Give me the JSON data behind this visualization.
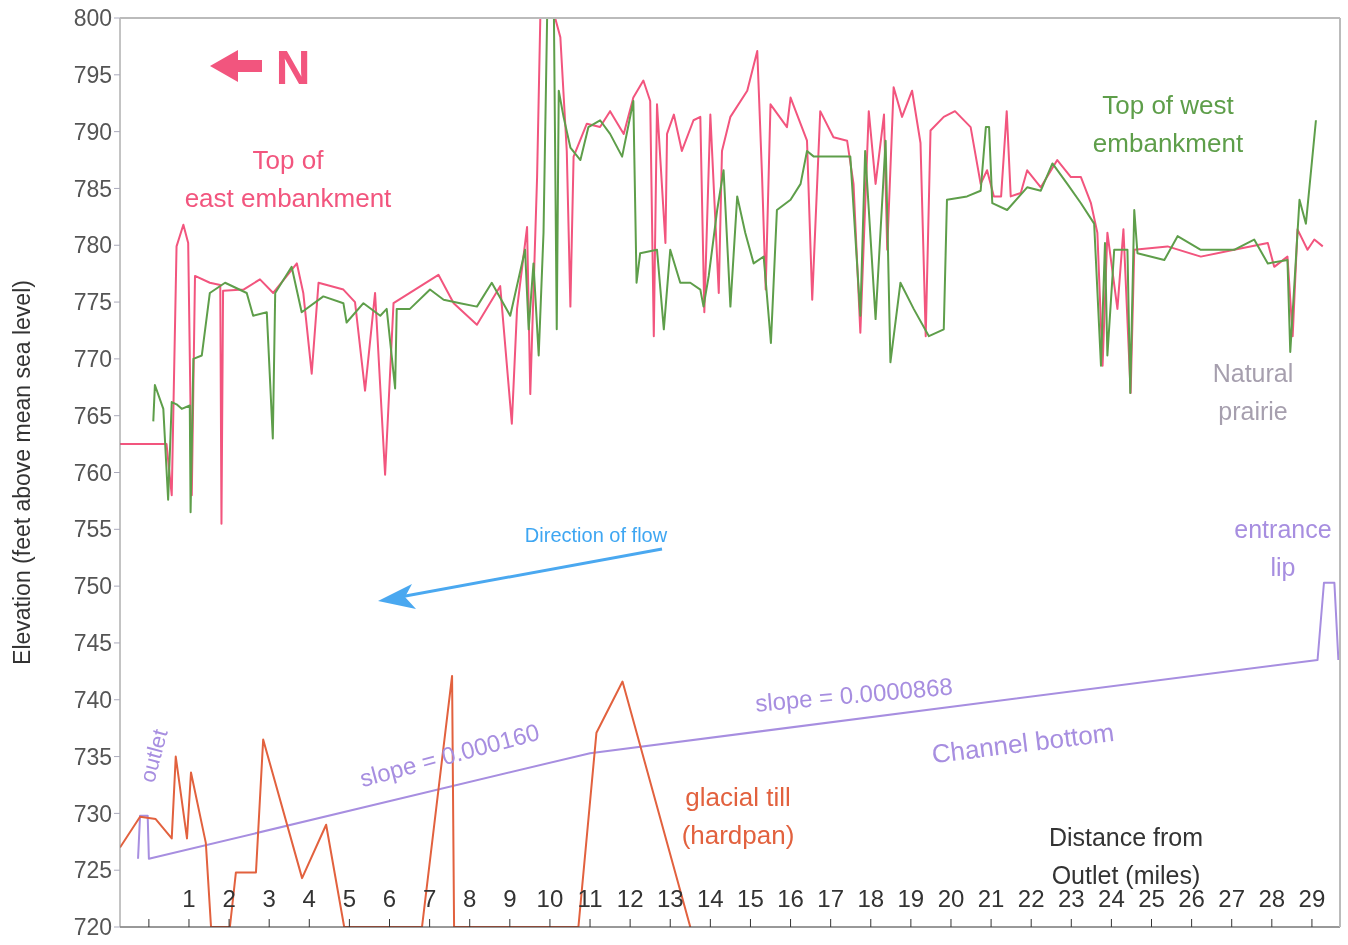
{
  "chart_data": {
    "type": "line",
    "xlabel": "Distance from Outlet (miles)",
    "ylabel": "Elevation (feet above mean sea level)",
    "xlim": [
      -0.72,
      29.7
    ],
    "ylim": [
      720,
      800
    ],
    "xticks": [
      {
        "value": 0,
        "label": null
      },
      1,
      2,
      3,
      4,
      5,
      6,
      7,
      8,
      9,
      10,
      11,
      12,
      13,
      14,
      15,
      16,
      17,
      18,
      19,
      20,
      21,
      22,
      23,
      24,
      25,
      26,
      27,
      28,
      29
    ],
    "yticks": [
      720,
      725,
      730,
      735,
      740,
      745,
      750,
      755,
      760,
      765,
      770,
      775,
      780,
      785,
      790,
      795,
      800
    ],
    "marker": "none",
    "series": [
      {
        "name": "Top of east embankment",
        "color": "#f2557e",
        "x": [
          -0.72,
          0.44,
          0.57,
          0.69,
          0.86,
          0.98,
          1.07,
          1.15,
          1.52,
          1.78,
          1.81,
          1.85,
          2.36,
          2.77,
          3.1,
          3.69,
          3.85,
          4.06,
          4.23,
          4.85,
          5.14,
          5.39,
          5.64,
          5.89,
          6.1,
          7.22,
          7.6,
          8.18,
          8.76,
          9.05,
          9.18,
          9.43,
          9.51,
          9.68,
          9.76,
          10.13,
          10.26,
          10.42,
          10.51,
          10.59,
          10.92,
          11.25,
          11.5,
          11.84,
          12.08,
          12.33,
          12.5,
          12.59,
          12.67,
          12.88,
          12.92,
          13.09,
          13.29,
          13.58,
          13.75,
          13.85,
          14.0,
          14.21,
          14.29,
          14.5,
          14.92,
          15.17,
          15.29,
          15.38,
          15.5,
          15.91,
          16.0,
          16.41,
          16.54,
          16.74,
          17.07,
          17.41,
          17.57,
          17.74,
          17.95,
          18.12,
          18.33,
          18.41,
          18.57,
          18.78,
          19.03,
          19.24,
          19.37,
          19.49,
          19.82,
          20.1,
          20.49,
          20.74,
          20.9,
          21.07,
          21.25,
          21.39,
          21.49,
          21.74,
          21.9,
          22.24,
          22.65,
          22.99,
          23.24,
          23.49,
          23.65,
          23.78,
          23.9,
          24.15,
          24.3,
          24.48,
          24.57,
          25.4,
          26.23,
          27.06,
          27.9,
          28.06,
          28.39,
          28.52,
          28.64,
          28.89,
          29.06,
          29.27
        ],
        "values": [
          762.5,
          762.5,
          758,
          779.9,
          781.8,
          780.2,
          758,
          777.3,
          776.7,
          776.5,
          755.5,
          776,
          776.1,
          777,
          775.8,
          778.4,
          775.8,
          768.7,
          776.7,
          776.1,
          775,
          767.2,
          775.8,
          759.8,
          774.9,
          777.4,
          774.9,
          773,
          776.4,
          764.3,
          774.4,
          781.6,
          766.9,
          786,
          800,
          800,
          798.3,
          788.3,
          774.6,
          787.8,
          790.7,
          790.4,
          791.8,
          789.8,
          793,
          794.5,
          792.7,
          772,
          792.4,
          780.2,
          789.8,
          791.5,
          788.3,
          791,
          791.3,
          774.1,
          791.5,
          775.8,
          788.3,
          791.3,
          793.6,
          797.1,
          786,
          776.1,
          792.4,
          790.4,
          793,
          789.2,
          775.2,
          791.8,
          789.5,
          789.2,
          785.4,
          772.3,
          791.8,
          785.4,
          791.5,
          779.6,
          793.9,
          791.3,
          793.6,
          789,
          772,
          790.1,
          791.3,
          791.8,
          790.4,
          785.4,
          786.6,
          784.3,
          784.3,
          791.8,
          784.3,
          784.6,
          786.6,
          785.1,
          787.5,
          786,
          786,
          783.7,
          781.1,
          769.4,
          781.1,
          774.4,
          781.4,
          767,
          779.6,
          779.9,
          779,
          779.6,
          780.2,
          778.1,
          779,
          772,
          781.4,
          779.6,
          780.5,
          779.9
        ]
      },
      {
        "name": "Top of west embankment",
        "color": "#5e9e4a",
        "x": [
          0.11,
          0.15,
          0.36,
          0.48,
          0.57,
          0.69,
          0.82,
          1.02,
          1.04,
          1.11,
          1.32,
          1.52,
          1.9,
          2.44,
          2.6,
          2.94,
          3.09,
          3.15,
          3.56,
          3.81,
          4.35,
          4.85,
          4.93,
          5.35,
          5.77,
          5.93,
          6.14,
          6.18,
          6.51,
          7.01,
          7.35,
          7.76,
          8.18,
          8.55,
          9.01,
          9.38,
          9.47,
          9.59,
          9.72,
          9.84,
          9.93,
          10.1,
          10.17,
          10.22,
          10.34,
          10.51,
          10.76,
          10.96,
          11.25,
          11.5,
          11.8,
          12.08,
          12.16,
          12.25,
          12.67,
          12.84,
          13.0,
          13.25,
          13.5,
          13.75,
          13.83,
          13.96,
          14.17,
          14.33,
          14.5,
          14.67,
          14.87,
          15.08,
          15.33,
          15.51,
          15.66,
          16.0,
          16.25,
          16.41,
          16.58,
          17.07,
          17.49,
          17.74,
          17.86,
          18.12,
          18.37,
          18.49,
          18.74,
          19.07,
          19.45,
          19.82,
          19.9,
          20.4,
          20.74,
          20.87,
          20.95,
          21.03,
          21.4,
          21.9,
          22.24,
          22.53,
          22.9,
          23.24,
          23.57,
          23.74,
          23.84,
          23.9,
          24.07,
          24.4,
          24.47,
          24.57,
          24.65,
          25.32,
          25.65,
          26.23,
          27.06,
          27.56,
          27.9,
          28.39,
          28.46,
          28.69,
          28.85,
          29.1
        ],
        "values": [
          764.5,
          767.7,
          765.6,
          757.6,
          766.2,
          766,
          765.6,
          765.9,
          756.5,
          770,
          770.3,
          775.8,
          776.7,
          775.8,
          773.8,
          774.1,
          763,
          775.8,
          778.1,
          774.1,
          775.5,
          774.9,
          773.2,
          774.9,
          773.8,
          774.4,
          767.4,
          774.4,
          774.4,
          776.1,
          775.2,
          774.9,
          774.6,
          776.7,
          773.8,
          779.6,
          772.6,
          778.4,
          770.3,
          781.1,
          800,
          800,
          772.6,
          793.6,
          791.3,
          788.6,
          787.5,
          790.4,
          791,
          789.8,
          787.8,
          792.7,
          776.7,
          779.3,
          779.6,
          772.6,
          779.6,
          776.7,
          776.7,
          776.1,
          774.6,
          777.3,
          783.1,
          786.6,
          774.6,
          784.3,
          781.1,
          778.4,
          779,
          771.4,
          783.1,
          784,
          785.4,
          788.3,
          787.8,
          787.8,
          787.8,
          773.8,
          788.3,
          773.5,
          789.2,
          769.7,
          776.7,
          774.4,
          772,
          772.6,
          784,
          784.3,
          784.8,
          790.4,
          790.4,
          783.7,
          783.1,
          785.1,
          784.8,
          787.2,
          785.4,
          783.7,
          781.9,
          769.4,
          780.2,
          770.3,
          779.6,
          779.6,
          767,
          783.1,
          779.3,
          778.7,
          780.8,
          779.6,
          779.6,
          780.5,
          778.4,
          778.7,
          770.6,
          784,
          781.9,
          791
        ]
      },
      {
        "name": "Channel bottom",
        "color": "#a78ee0",
        "x": [
          -0.27,
          -0.22,
          -0.03,
          0.0,
          11.0,
          29.14,
          29.3,
          29.56,
          29.66
        ],
        "values": [
          726,
          729.8,
          729.8,
          726,
          735.3,
          743.5,
          750.3,
          750.3,
          743.5
        ]
      },
      {
        "name": "glacial till (hardpan)",
        "color": "#e2613e",
        "x": [
          -0.72,
          -0.22,
          0.17,
          0.57,
          0.67,
          0.95,
          1.05,
          1.42,
          1.55,
          2.02,
          2.17,
          2.67,
          2.85,
          3.82,
          4.42,
          4.87,
          6.81,
          7.56,
          7.61,
          10.71,
          11.16,
          11.81,
          13.5
        ],
        "values": [
          727,
          729.7,
          729.5,
          727.8,
          735,
          727.8,
          733.6,
          727.4,
          720,
          720,
          724.8,
          724.8,
          736.5,
          724.3,
          729,
          720,
          720,
          742.1,
          720,
          720,
          737.1,
          741.6,
          720
        ]
      }
    ],
    "annotations": [
      "N",
      "Natural prairie",
      "Direction of flow",
      {
        "text": "entrance lip",
        "x": 29.4,
        "y": 750.3
      },
      {
        "text": "outlet",
        "x": -0.15,
        "y": 729.8
      },
      {
        "text": "slope = 0.000160",
        "x": 7.5,
        "y": 732.3
      },
      {
        "text": "slope = 0.0000868",
        "x": 17.5,
        "y": 738.3
      }
    ]
  }
}
